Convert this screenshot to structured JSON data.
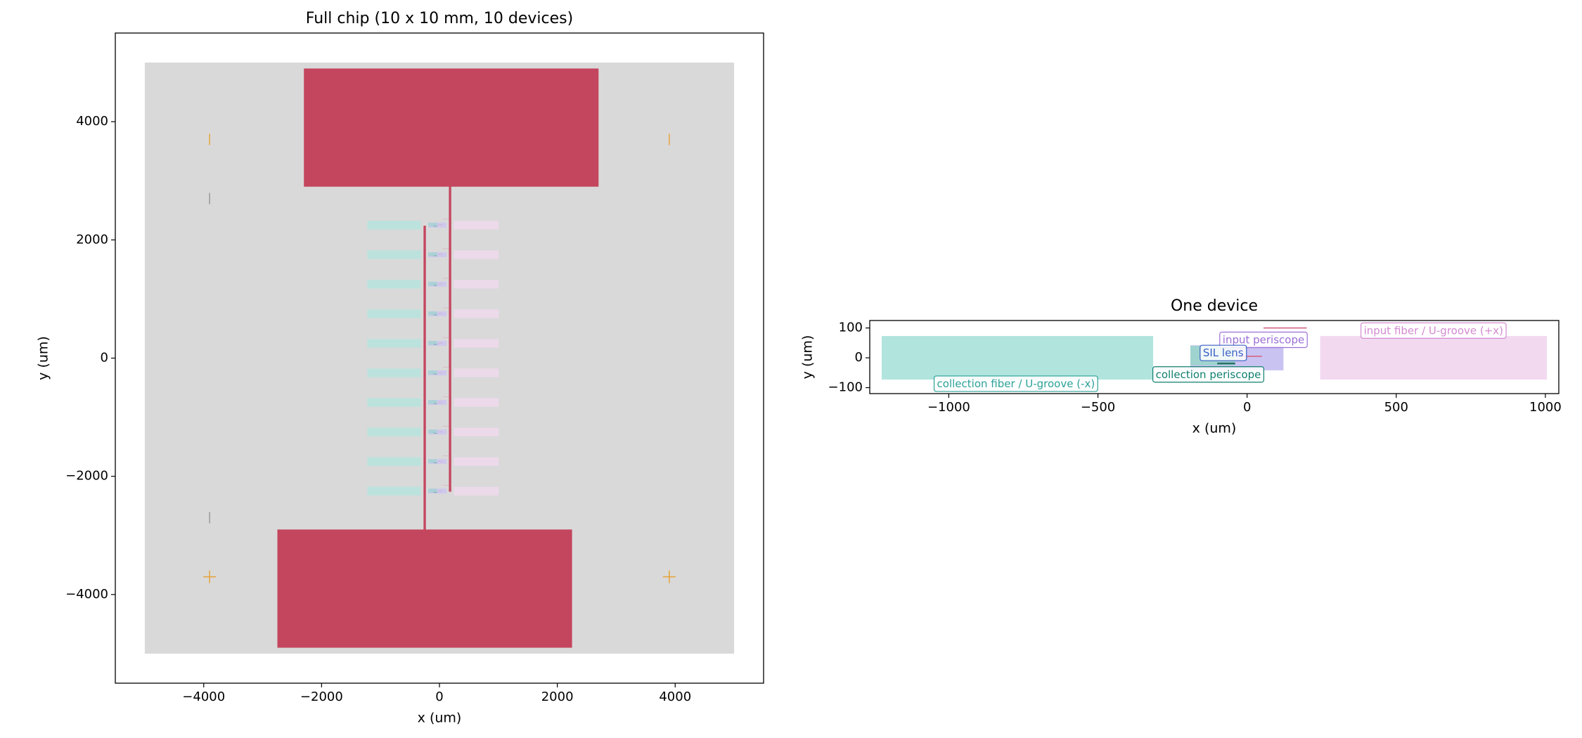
{
  "chart_data": [
    {
      "type": "layout",
      "title": "Full chip (10 x 10 mm, 10 devices)",
      "x_label": "x (um)",
      "y_label": "y (um)",
      "xlim": [
        -5500,
        5500
      ],
      "ylim": [
        -5500,
        5500
      ],
      "xticks": [
        {
          "value": -4000,
          "label": "−4000"
        },
        {
          "value": -2000,
          "label": "−2000"
        },
        0,
        2000,
        4000
      ],
      "yticks": [
        {
          "value": -4000,
          "label": "−4000"
        },
        {
          "value": -2000,
          "label": "−2000"
        },
        0,
        2000,
        4000
      ],
      "shapes": [
        {
          "x": [
            -5000,
            5000
          ],
          "y": [
            -5000,
            5000
          ],
          "color": "#d9d9d9"
        },
        {
          "x": [
            -2300,
            2700
          ],
          "y": [
            2900,
            4900
          ],
          "color": "#c4465e"
        },
        {
          "x": [
            -2750,
            2250
          ],
          "y": [
            -4900,
            -2900
          ],
          "color": "#c4465e"
        },
        {
          "x": [
            -270,
            -230
          ],
          "y": [
            -3880,
            2240
          ],
          "color": "#c4465e"
        },
        {
          "x": [
            160,
            200
          ],
          "y": [
            -2260,
            3920
          ],
          "color": "#c4465e"
        }
      ],
      "device_y": [
        2250,
        1750,
        1250,
        750,
        250,
        -250,
        -750,
        -1250,
        -1750,
        -2250
      ],
      "markers": [
        {
          "x": -3900,
          "y": -3700,
          "symbol": "+",
          "color": "#e8a33a"
        },
        {
          "x": 3900,
          "y": -3700,
          "symbol": "+",
          "color": "#e8a33a"
        },
        {
          "x": -3900,
          "y": 3700,
          "symbol": "|",
          "color": "#e8a33a"
        },
        {
          "x": 3900,
          "y": 3700,
          "symbol": "|",
          "color": "#e8a33a"
        },
        {
          "x": -3900,
          "y": 2700,
          "symbol": "|",
          "color": "#999999"
        },
        {
          "x": -3900,
          "y": -2700,
          "symbol": "|",
          "color": "#999999"
        }
      ]
    },
    {
      "type": "layout",
      "title": "One device",
      "x_label": "x (um)",
      "y_label": "y (um)",
      "xlim": [
        -1265,
        1045
      ],
      "ylim": [
        -120,
        125
      ],
      "xticks": [
        {
          "value": -1000,
          "label": "−1000"
        },
        {
          "value": -500,
          "label": "−500"
        },
        0,
        500,
        1000
      ],
      "yticks": [
        {
          "value": -100,
          "label": "−100"
        },
        0,
        100
      ],
      "shapes": [
        {
          "x": [
            -1225,
            -315
          ],
          "y": [
            -73,
            73
          ],
          "color": "#b2e4de"
        },
        {
          "x": [
            245,
            1005
          ],
          "y": [
            -73,
            73
          ],
          "color": "#f2d9f0"
        },
        {
          "x": [
            -190,
            122
          ],
          "y": [
            -42,
            42
          ],
          "color": "#c9c3f2"
        },
        {
          "x": [
            -190,
            -40
          ],
          "y": [
            -25,
            40
          ],
          "color": "#9fd3cf"
        },
        {
          "x": [
            -100,
            -40
          ],
          "y": [
            -22,
            -16
          ],
          "color": "#2b6f6a"
        },
        {
          "x": [
            55,
            200
          ],
          "y": [
            98,
            102
          ],
          "color": "#d46a8a"
        },
        {
          "x": [
            -20,
            50
          ],
          "y": [
            3,
            7
          ],
          "color": "#d46a8a"
        }
      ],
      "annotations": [
        {
          "text": "input periscope",
          "x": 55,
          "y": 59,
          "color": "#9b6ed6"
        },
        {
          "text": "SIL lens",
          "x": -80,
          "y": 15,
          "color": "#3a5fc4"
        },
        {
          "text": "collection periscope",
          "x": -130,
          "y": -57,
          "color": "#0f7f6f"
        },
        {
          "text": "collection fiber / U-groove (-x)",
          "x": -775,
          "y": -88,
          "color": "#2aa198"
        },
        {
          "text": "input fiber / U-groove (+x)",
          "x": 625,
          "y": 90,
          "color": "#d48ad0"
        }
      ]
    }
  ]
}
